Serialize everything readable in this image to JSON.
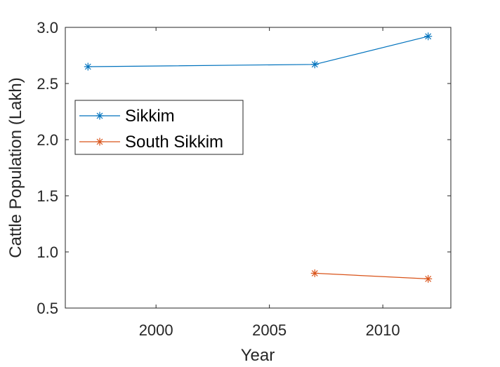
{
  "chart_data": {
    "type": "line",
    "title": "",
    "xlabel": "Year",
    "ylabel": "Cattle Population (Lakh)",
    "xlim": [
      1996,
      2013
    ],
    "ylim": [
      0.5,
      3.0
    ],
    "xticks": [
      2000,
      2005,
      2010
    ],
    "xtick_labels": [
      "2000",
      "2005",
      "2010"
    ],
    "yticks": [
      0.5,
      1.0,
      1.5,
      2.0,
      2.5,
      3.0
    ],
    "ytick_labels": [
      "0.5",
      "1.0",
      "1.5",
      "2.0",
      "2.5",
      "3.0"
    ],
    "grid": false,
    "legend_position": "upper-left",
    "marker": "asterisk",
    "series": [
      {
        "name": "Sikkim",
        "color": "#0072BD",
        "x": [
          1997,
          2007,
          2012
        ],
        "y": [
          2.65,
          2.67,
          2.92
        ]
      },
      {
        "name": "South Sikkim",
        "color": "#D95319",
        "x": [
          2007,
          2012
        ],
        "y": [
          0.81,
          0.76
        ]
      }
    ]
  }
}
